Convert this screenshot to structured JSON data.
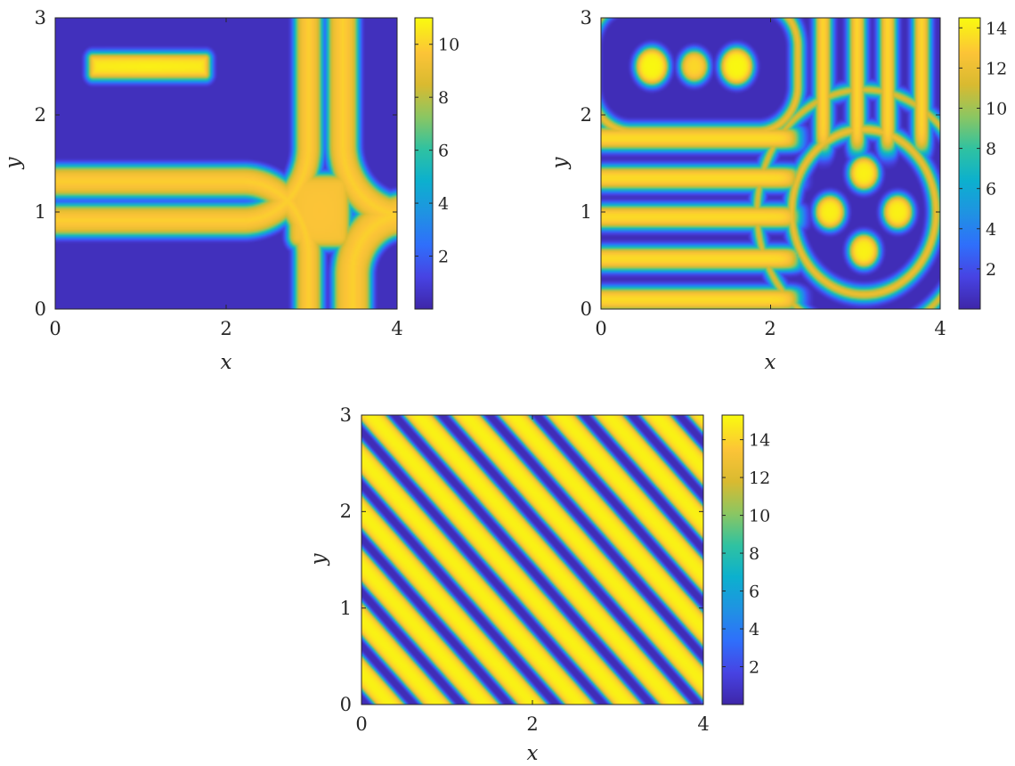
{
  "colors": {
    "background": "#ffffff",
    "axis": "#262626",
    "colormap": "parula",
    "low": "#3e26a8",
    "high": "#f9fb0e"
  },
  "chart_data": [
    {
      "type": "heatmap",
      "title": "",
      "xlabel": "x",
      "ylabel": "y",
      "xlim": [
        0,
        4
      ],
      "ylim": [
        0,
        3
      ],
      "xticks": [
        0,
        2,
        4
      ],
      "yticks": [
        0,
        1,
        2,
        3
      ],
      "clim": [
        0,
        11
      ],
      "colorbar_ticks": [
        2,
        4,
        6,
        8,
        10
      ],
      "grid": false,
      "pattern": "rounded-rectangle bands: yellow bar x 0.38-1.82 at y 2.36-2.64; rounded bands around it and along y approx 0.3-0.6 and 1.4-1.7; rounded square near x 2.8-3.5, y 0.6-1.4; corner arcs at x approx 3.5-4.0; dark background elsewhere",
      "field": {
        "base": 0.4,
        "rects": [
          {
            "x": [
              0.38,
              1.82
            ],
            "y": [
              2.36,
              2.64
            ],
            "r": 0.06,
            "v": 10.8
          },
          {
            "x": [
              2.72,
              3.46
            ],
            "y": [
              0.62,
              1.4
            ],
            "r": 0.13,
            "v": 9.7
          }
        ],
        "rings": [
          {
            "cx": 1.1,
            "cy": 2.5,
            "hw": 1.1,
            "hh": 0.82,
            "rad": 0.55,
            "inner": 0.05,
            "outer": 0.38,
            "v": 10.0
          },
          {
            "cx": 1.1,
            "cy": 0.0,
            "hw": 1.1,
            "hh": 0.55,
            "rad": 0.55,
            "inner": 0.05,
            "outer": 0.38,
            "v": 10.0
          },
          {
            "cx": 4.55,
            "cy": 3.0,
            "hw": 0.45,
            "hh": 1.3,
            "rad": 0.5,
            "inner": 0.05,
            "outer": 0.42,
            "v": 10.0
          },
          {
            "cx": 4.55,
            "cy": 0.0,
            "hw": 0.45,
            "hh": 0.35,
            "rad": 0.35,
            "inner": 0.05,
            "outer": 0.5,
            "v": 10.0
          }
        ]
      }
    },
    {
      "type": "heatmap",
      "title": "",
      "xlabel": "x",
      "ylabel": "y",
      "xlim": [
        0,
        4
      ],
      "ylim": [
        0,
        3
      ],
      "xticks": [
        0,
        2,
        4
      ],
      "yticks": [
        0,
        1,
        2,
        3
      ],
      "clim": [
        0,
        14.5
      ],
      "colorbar_ticks": [
        2,
        4,
        6,
        8,
        10,
        12,
        14
      ],
      "grid": false,
      "pattern": "horizontal stripes on the left (y approx 0.15, 0.55, 0.95, 1.35, 1.75); nested rounded loops around a peanut-shaped blob centered near (1.1, 2.5); cross/plus-shaped blob centered near (3.1, 1.0) with concentric ring; vertical stripes on the right",
      "field": {
        "base": 0.4,
        "hstripes": {
          "y": [
            0.1,
            0.52,
            0.95,
            1.35,
            1.76
          ],
          "half": 0.12,
          "xmax": 2.35,
          "v": 13.6
        },
        "vstripes": {
          "x": [
            2.62,
            3.02,
            3.38,
            3.78
          ],
          "half": 0.1,
          "ymin": 1.6,
          "v": 13.6
        },
        "blobs": [
          {
            "cx": 0.6,
            "cy": 2.5,
            "r": 0.2,
            "v": 14.4
          },
          {
            "cx": 1.1,
            "cy": 2.5,
            "r": 0.17,
            "v": 13.4
          },
          {
            "cx": 1.6,
            "cy": 2.5,
            "r": 0.2,
            "v": 14.4
          },
          {
            "cx": 2.7,
            "cy": 1.0,
            "r": 0.18,
            "v": 14.2
          },
          {
            "cx": 3.5,
            "cy": 1.0,
            "r": 0.18,
            "v": 14.2
          },
          {
            "cx": 3.1,
            "cy": 1.4,
            "r": 0.18,
            "v": 14.2
          },
          {
            "cx": 3.1,
            "cy": 0.6,
            "r": 0.18,
            "v": 14.2
          }
        ],
        "rings": [
          {
            "cx": 1.1,
            "cy": 2.5,
            "hw": 0.75,
            "hh": 0.2,
            "rad": 0.2,
            "inner": 0.2,
            "outer": 0.34,
            "v": 13.6
          },
          {
            "cx": 3.1,
            "cy": 1.0,
            "hw": 0.0,
            "hh": 0.0,
            "rad": 0.78,
            "inner": 0.0,
            "outer": 0.14,
            "v": 13.6
          },
          {
            "cx": 3.1,
            "cy": 1.0,
            "hw": 0.0,
            "hh": 0.0,
            "rad": 1.2,
            "inner": 0.0,
            "outer": 0.12,
            "v": 13.6
          }
        ]
      }
    },
    {
      "type": "heatmap",
      "title": "",
      "xlabel": "x",
      "ylabel": "y",
      "xlim": [
        0,
        4
      ],
      "ylim": [
        0,
        3
      ],
      "xticks": [
        0,
        2,
        4
      ],
      "yticks": [
        0,
        1,
        2,
        3
      ],
      "clim": [
        0,
        15.3
      ],
      "colorbar_ticks": [
        2,
        4,
        6,
        8,
        10,
        12,
        14
      ],
      "grid": false,
      "pattern": "diagonal stripes running from upper-left to lower-right (lines of constant x + y), yellow bands alternating with narrow dark bands",
      "field": {
        "base": 0.4,
        "diagonal": {
          "period": 0.555,
          "phase": 0.22,
          "dark_half_width": 0.095,
          "v": 15.0
        }
      }
    }
  ]
}
